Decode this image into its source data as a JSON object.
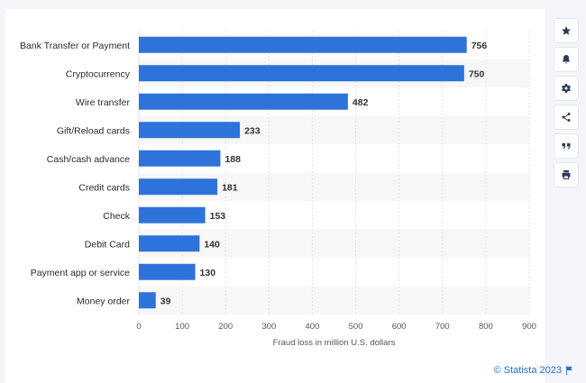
{
  "chart_data": {
    "type": "bar",
    "orientation": "horizontal",
    "categories": [
      "Bank Transfer or Payment",
      "Cryptocurrency",
      "Wire transfer",
      "Gift/Reload cards",
      "Cash/cash advance",
      "Credit cards",
      "Check",
      "Debit Card",
      "Payment app or service",
      "Money order"
    ],
    "values": [
      756,
      750,
      482,
      233,
      188,
      181,
      153,
      140,
      130,
      39
    ],
    "xlabel": "Fraud loss in million U.S. dollars",
    "ylabel": "",
    "xlim": [
      0,
      900
    ],
    "xticks": [
      0,
      100,
      200,
      300,
      400,
      500,
      600,
      700,
      800,
      900
    ],
    "bar_color": "#2d73d9",
    "grid": true,
    "data_labels": true
  },
  "sidebar": {
    "buttons": [
      {
        "name": "star-icon"
      },
      {
        "name": "bell-icon"
      },
      {
        "name": "gear-icon"
      },
      {
        "name": "share-icon"
      },
      {
        "name": "quote-icon"
      },
      {
        "name": "print-icon"
      }
    ]
  },
  "footer": {
    "credit": "© Statista 2023"
  }
}
